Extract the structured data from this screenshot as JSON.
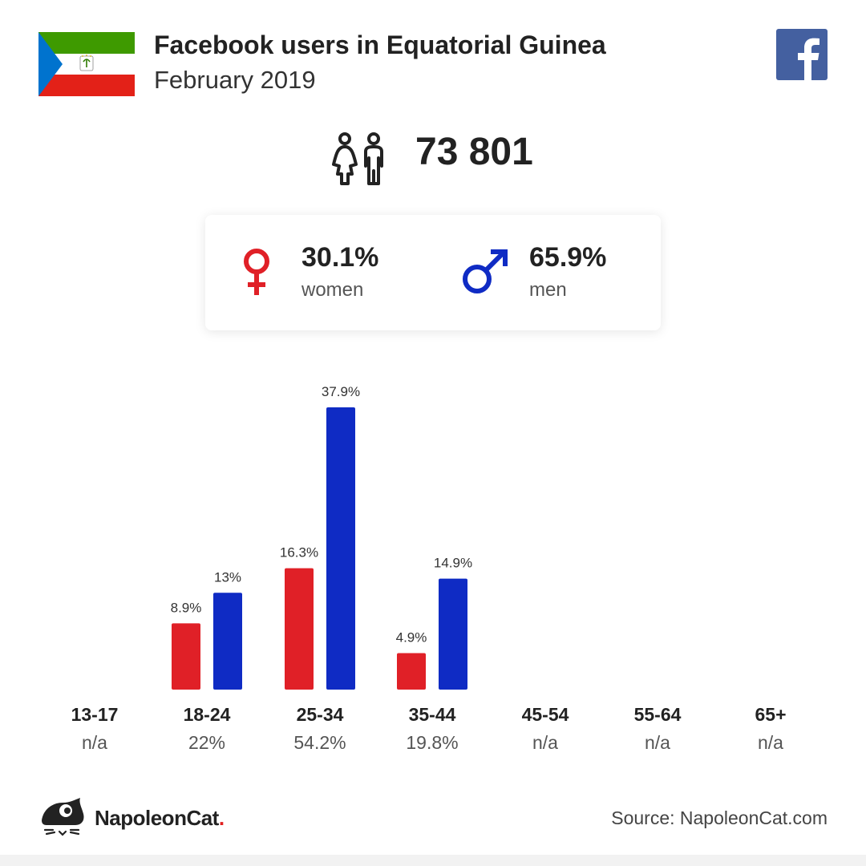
{
  "header": {
    "title": "Facebook users in Equatorial Guinea",
    "subtitle": "February 2019",
    "flag_icon": "equatorial-guinea-flag",
    "logo_icon": "facebook-logo"
  },
  "total": {
    "value": "73 801",
    "icon": "people-icon"
  },
  "gender": {
    "women_pct": "30.1%",
    "women_label": "women",
    "men_pct": "65.9%",
    "men_label": "men"
  },
  "colors": {
    "women": "#e02027",
    "men": "#0f2bc4",
    "facebook": "#4460a0"
  },
  "chart_data": {
    "type": "bar",
    "categories": [
      "13-17",
      "18-24",
      "25-34",
      "35-44",
      "45-54",
      "55-64",
      "65+"
    ],
    "category_totals": [
      "n/a",
      "22%",
      "54.2%",
      "19.8%",
      "n/a",
      "n/a",
      "n/a"
    ],
    "series": [
      {
        "values": [
          null,
          8.9,
          16.3,
          4.9,
          null,
          null,
          null
        ],
        "labels": [
          "",
          "8.9%",
          "16.3%",
          "4.9%",
          "",
          "",
          ""
        ],
        "color": "#e02027"
      },
      {
        "values": [
          null,
          13,
          37.9,
          14.9,
          null,
          null,
          null
        ],
        "labels": [
          "",
          "13%",
          "37.9%",
          "14.9%",
          "",
          "",
          ""
        ],
        "color": "#0f2bc4"
      }
    ],
    "ylim": [
      0,
      37.9
    ],
    "grid": false
  },
  "footer": {
    "brand_name": "NapoleonCat",
    "brand_dot": ".",
    "source": "Source: NapoleonCat.com"
  }
}
